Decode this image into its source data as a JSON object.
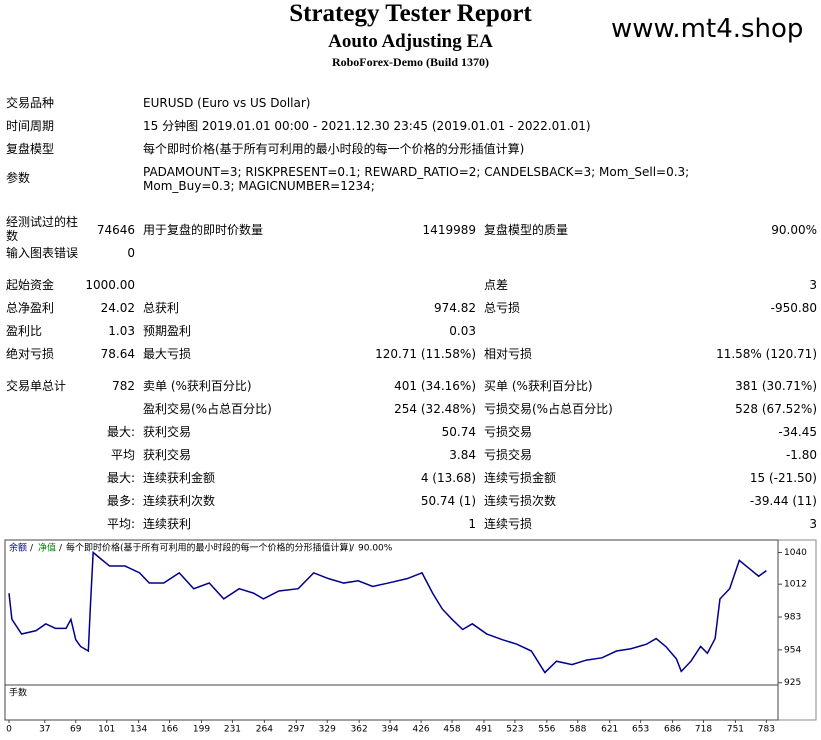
{
  "header": {
    "title": "Strategy Tester Report",
    "subtitle": "Aouto Adjusting EA",
    "server": "RoboForex-Demo (Build 1370)",
    "watermark": "www.mt4.shop"
  },
  "settings": [
    {
      "label": "交易品种",
      "value": "EURUSD (Euro vs US Dollar)"
    },
    {
      "label": "时间周期",
      "value": "15 分钟图 2019.01.01 00:00 - 2021.12.30 23:45 (2019.01.01 - 2022.01.01)"
    },
    {
      "label": "复盘模型",
      "value": "每个即时价格(基于所有可利用的最小时段的每一个价格的分形插值计算)"
    },
    {
      "label": "参数",
      "value": "PADAMOUNT=3; RISKPRESENT=0.1; REWARD_RATIO=2; CANDELSBACK=3; Mom_Sell=0.3; Mom_Buy=0.3; MAGICNUMBER=1234;"
    }
  ],
  "stats": [
    [
      "经测试过的柱数",
      "74646",
      "用于复盘的即时价数量",
      "1419989",
      "复盘模型的质量",
      "90.00%"
    ],
    [
      "输入图表错误",
      "0",
      null,
      null,
      null,
      null
    ],
    [
      "起始资金",
      "1000.00",
      null,
      null,
      "点差",
      "3"
    ],
    [
      "总净盈利",
      "24.02",
      "总获利",
      "974.82",
      "总亏损",
      "-950.80"
    ],
    [
      "盈利比",
      "1.03",
      "预期盈利",
      "0.03",
      null,
      null
    ],
    [
      "绝对亏损",
      "78.64",
      "最大亏损",
      "120.71 (11.58%)",
      "相对亏损",
      "11.58% (120.71)"
    ],
    [
      "交易单总计",
      "782",
      "卖单 (%获利百分比)",
      "401 (34.16%)",
      "买单 (%获利百分比)",
      "381 (30.71%)"
    ],
    [
      null,
      null,
      "盈利交易(%占总百分比)",
      "254 (32.48%)",
      "亏损交易(%占总百分比)",
      "528 (67.52%)"
    ],
    [
      null,
      "最大:",
      "获利交易",
      "50.74",
      "亏损交易",
      "-34.45"
    ],
    [
      null,
      "平均",
      "获利交易",
      "3.84",
      "亏损交易",
      "-1.80"
    ],
    [
      null,
      "最大:",
      "连续获利金额",
      "4 (13.68)",
      "连续亏损金额",
      "15 (-21.50)"
    ],
    [
      null,
      "最多:",
      "连续获利次数",
      "50.74 (1)",
      "连续亏损次数",
      "-39.44 (11)"
    ],
    [
      null,
      "平均:",
      "连续获利",
      "1",
      "连续亏损",
      "3"
    ]
  ],
  "chart_data": {
    "type": "line",
    "equity_label": "净值",
    "model_label": "每个即时价格(基于所有可利用的最小时段的每一个价格的分形插值计算)",
    "quality_label": "90.00%",
    "lots_label": "手数",
    "x": [
      0,
      3,
      13,
      28,
      38,
      48,
      59,
      64,
      69,
      74,
      82,
      84,
      87,
      94,
      104,
      120,
      135,
      145,
      160,
      176,
      191,
      207,
      222,
      238,
      253,
      263,
      279,
      299,
      315,
      330,
      346,
      361,
      376,
      392,
      412,
      427,
      438,
      448,
      458,
      469,
      479,
      494,
      510,
      525,
      540,
      554,
      566,
      582,
      597,
      613,
      628,
      643,
      659,
      669,
      679,
      690,
      695,
      705,
      715,
      722,
      730,
      735,
      745,
      755,
      765,
      775,
      783
    ],
    "series": [
      {
        "name": "余额",
        "color": "#00008b",
        "values": [
          1004,
          981,
          968,
          971,
          977,
          973,
          973,
          981,
          963,
          957,
          953,
          990,
          1040,
          1035,
          1028,
          1028,
          1022,
          1013,
          1013,
          1022,
          1008,
          1013,
          999,
          1008,
          1004,
          999,
          1006,
          1008,
          1022,
          1017,
          1013,
          1015,
          1010,
          1013,
          1017,
          1022,
          1004,
          990,
          981,
          972,
          977,
          968,
          963,
          959,
          953,
          934,
          944,
          941,
          945,
          947,
          953,
          955,
          959,
          964,
          957,
          946,
          935,
          944,
          957,
          951,
          964,
          999,
          1008,
          1033,
          1026,
          1019,
          1024
        ]
      }
    ],
    "xlim": [
      0,
      795
    ],
    "ylim": [
      923,
      1051
    ],
    "xticks": [
      0,
      37,
      69,
      101,
      134,
      166,
      199,
      231,
      264,
      297,
      329,
      362,
      394,
      426,
      458,
      491,
      523,
      556,
      588,
      621,
      653,
      686,
      718,
      751,
      783
    ],
    "yticks": [
      925,
      954,
      983,
      1012,
      1040
    ]
  }
}
